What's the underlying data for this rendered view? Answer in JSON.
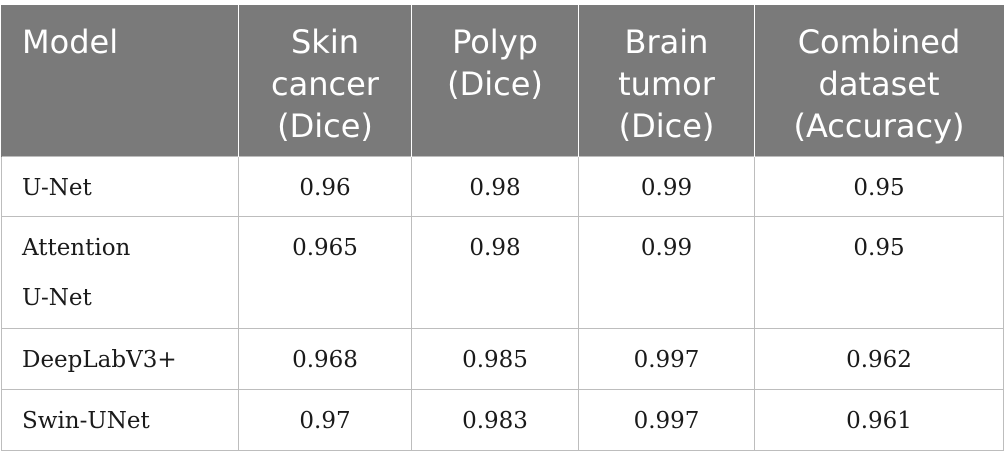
{
  "table": {
    "headers": [
      "Model",
      "Skin\ncancer\n(Dice)",
      "Polyp\n(Dice)",
      "Brain\ntumor\n(Dice)",
      "Combined\ndataset\n(Accuracy)"
    ],
    "rows": [
      [
        "U-Net",
        "0.96",
        "0.98",
        "0.99",
        "0.95"
      ],
      [
        "Attention\nU-Net",
        "0.965",
        "0.98",
        "0.99",
        "0.95"
      ],
      [
        "DeepLabV3+",
        "0.968",
        "0.985",
        "0.997",
        "0.962"
      ],
      [
        "Swin-UNet",
        "0.97",
        "0.983",
        "0.997",
        "0.961"
      ]
    ]
  },
  "colors": {
    "header_background": "#7a7a7a",
    "header_text": "#ffffff",
    "grid_line": "#bdbdbd",
    "body_text": "#1a1a1a"
  }
}
